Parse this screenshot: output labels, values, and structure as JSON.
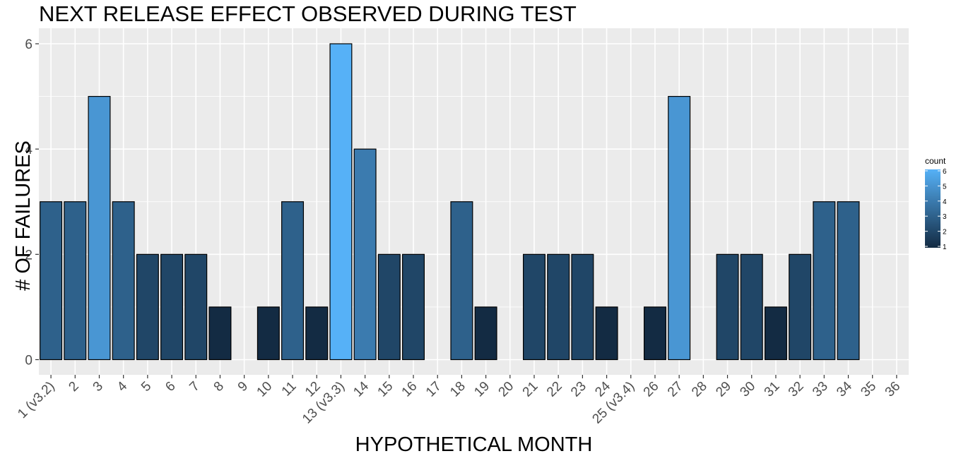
{
  "chart_data": {
    "type": "bar",
    "title": "NEXT RELEASE EFFECT OBSERVED DURING TEST",
    "xlabel": "HYPOTHETICAL MONTH",
    "ylabel": "# OF FAILURES",
    "categories": [
      "1 (v3.2)",
      "2",
      "3",
      "4",
      "5",
      "6",
      "7",
      "8",
      "9",
      "10",
      "11",
      "12",
      "13 (v3.3)",
      "14",
      "15",
      "16",
      "17",
      "18",
      "19",
      "20",
      "21",
      "22",
      "23",
      "24",
      "25 (v3.4)",
      "26",
      "27",
      "28",
      "29",
      "30",
      "31",
      "32",
      "33",
      "34",
      "35",
      "36"
    ],
    "values": [
      3,
      3,
      5,
      3,
      2,
      2,
      2,
      1,
      0,
      1,
      3,
      1,
      6,
      4,
      2,
      2,
      0,
      3,
      1,
      0,
      2,
      2,
      2,
      1,
      0,
      1,
      5,
      0,
      2,
      2,
      1,
      2,
      3,
      3,
      0,
      0
    ],
    "ylim": [
      0,
      6.3
    ],
    "yticks": [
      0,
      2,
      4,
      6
    ],
    "grid": true,
    "legend": {
      "title": "count",
      "ticks": [
        1,
        2,
        3,
        4,
        5,
        6
      ],
      "placement": "right",
      "color_low": "#132B43",
      "color_high": "#56B1F7"
    },
    "panel_background": "#EBEBEB",
    "grid_color": "#FFFFFF"
  }
}
